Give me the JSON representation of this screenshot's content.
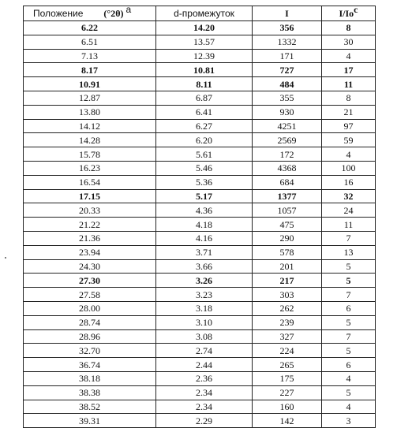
{
  "table": {
    "headers": {
      "position_label": "Положение",
      "position_unit": "(°2θ)",
      "position_note": "a",
      "d_spacing": "d-промежуток",
      "intensity": "I",
      "relative_intensity": "I/Io",
      "relative_note": "c"
    },
    "rows": [
      {
        "pos": "6.22",
        "d": "14.20",
        "i": "356",
        "rel": "8",
        "bold": true
      },
      {
        "pos": "6.51",
        "d": "13.57",
        "i": "1332",
        "rel": "30",
        "bold": false
      },
      {
        "pos": "7.13",
        "d": "12.39",
        "i": "171",
        "rel": "4",
        "bold": false
      },
      {
        "pos": "8.17",
        "d": "10.81",
        "i": "727",
        "rel": "17",
        "bold": true
      },
      {
        "pos": "10.91",
        "d": "8.11",
        "i": "484",
        "rel": "11",
        "bold": true
      },
      {
        "pos": "12.87",
        "d": "6.87",
        "i": "355",
        "rel": "8",
        "bold": false
      },
      {
        "pos": "13.80",
        "d": "6.41",
        "i": "930",
        "rel": "21",
        "bold": false
      },
      {
        "pos": "14.12",
        "d": "6.27",
        "i": "4251",
        "rel": "97",
        "bold": false
      },
      {
        "pos": "14.28",
        "d": "6.20",
        "i": "2569",
        "rel": "59",
        "bold": false
      },
      {
        "pos": "15.78",
        "d": "5.61",
        "i": "172",
        "rel": "4",
        "bold": false
      },
      {
        "pos": "16.23",
        "d": "5.46",
        "i": "4368",
        "rel": "100",
        "bold": false
      },
      {
        "pos": "16.54",
        "d": "5.36",
        "i": "684",
        "rel": "16",
        "bold": false
      },
      {
        "pos": "17.15",
        "d": "5.17",
        "i": "1377",
        "rel": "32",
        "bold": true
      },
      {
        "pos": "20.33",
        "d": "4.36",
        "i": "1057",
        "rel": "24",
        "bold": false
      },
      {
        "pos": "21.22",
        "d": "4.18",
        "i": "475",
        "rel": "11",
        "bold": false
      },
      {
        "pos": "21.36",
        "d": "4.16",
        "i": "290",
        "rel": "7",
        "bold": false
      },
      {
        "pos": "23.94",
        "d": "3.71",
        "i": "578",
        "rel": "13",
        "bold": false
      },
      {
        "pos": "24.30",
        "d": "3.66",
        "i": "201",
        "rel": "5",
        "bold": false
      },
      {
        "pos": "27.30",
        "d": "3.26",
        "i": "217",
        "rel": "5",
        "bold": true
      },
      {
        "pos": "27.58",
        "d": "3.23",
        "i": "303",
        "rel": "7",
        "bold": false
      },
      {
        "pos": "28.00",
        "d": "3.18",
        "i": "262",
        "rel": "6",
        "bold": false
      },
      {
        "pos": "28.74",
        "d": "3.10",
        "i": "239",
        "rel": "5",
        "bold": false
      },
      {
        "pos": "28.96",
        "d": "3.08",
        "i": "327",
        "rel": "7",
        "bold": false
      },
      {
        "pos": "32.70",
        "d": "2.74",
        "i": "224",
        "rel": "5",
        "bold": false
      },
      {
        "pos": "36.74",
        "d": "2.44",
        "i": "265",
        "rel": "6",
        "bold": false
      },
      {
        "pos": "38.18",
        "d": "2.36",
        "i": "175",
        "rel": "4",
        "bold": false
      },
      {
        "pos": "38.38",
        "d": "2.34",
        "i": "227",
        "rel": "5",
        "bold": false
      },
      {
        "pos": "38.52",
        "d": "2.34",
        "i": "160",
        "rel": "4",
        "bold": false
      },
      {
        "pos": "39.31",
        "d": "2.29",
        "i": "142",
        "rel": "3",
        "bold": false
      }
    ]
  }
}
